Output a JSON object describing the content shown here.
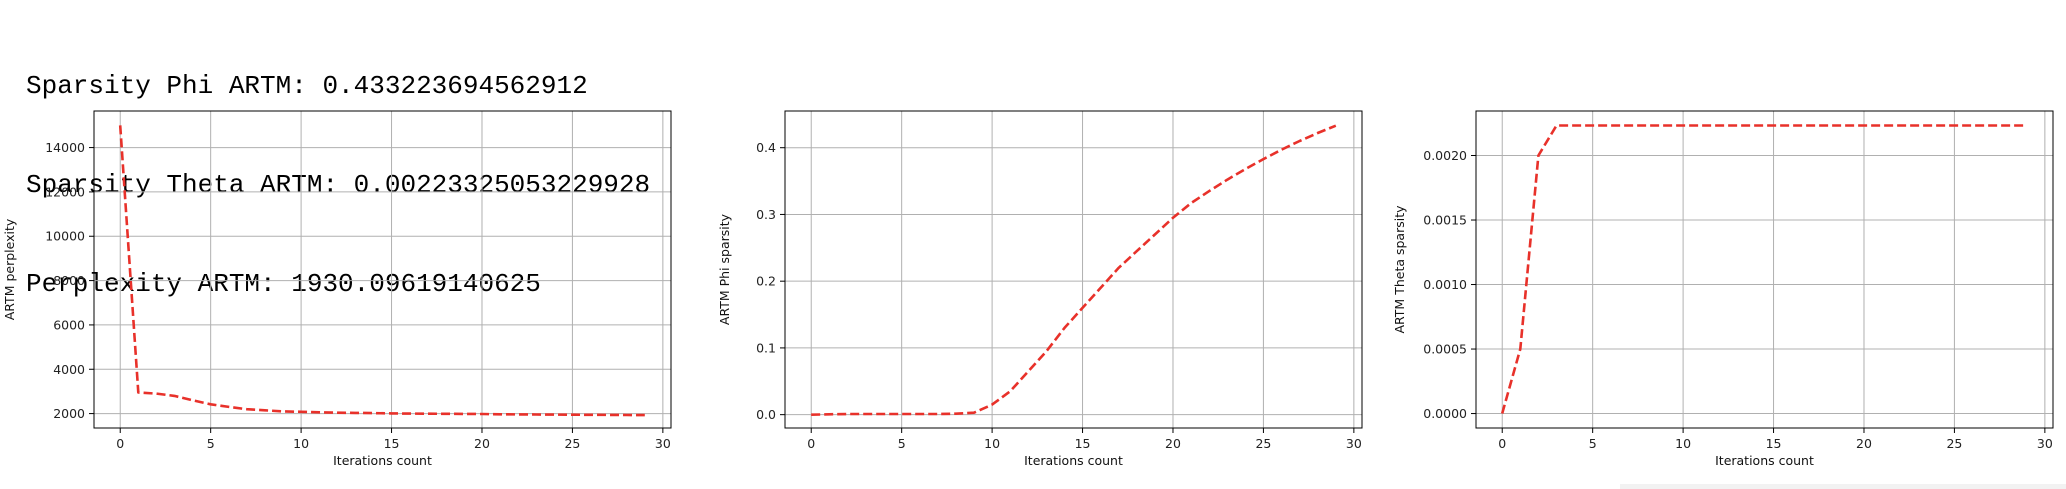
{
  "stats": {
    "line1": "Sparsity Phi ARTM: 0.433223694562912",
    "line2": "Sparsity Theta ARTM: 0.00223325053229928",
    "line3": "Perplexity ARTM: 1930.09619140625"
  },
  "chart_data": [
    {
      "type": "line",
      "xlabel": "Iterations count",
      "ylabel": "ARTM perplexity",
      "xlim": [
        -1.45,
        30.45
      ],
      "ylim": [
        1350,
        15650
      ],
      "xticks": [
        0,
        5,
        10,
        15,
        20,
        25,
        30
      ],
      "yticks": [
        2000,
        4000,
        6000,
        8000,
        10000,
        12000,
        14000
      ],
      "ytick_labels": [
        "2000",
        "4000",
        "6000",
        "8000",
        "10000",
        "12000",
        "14000"
      ],
      "grid": true,
      "line_color": "#e8312a",
      "line_style": "dashed",
      "x": [
        0,
        1,
        2,
        3,
        4,
        5,
        6,
        7,
        8,
        9,
        10,
        11,
        12,
        13,
        14,
        15,
        16,
        17,
        18,
        19,
        20,
        21,
        22,
        23,
        24,
        25,
        26,
        27,
        28,
        29
      ],
      "y": [
        15000,
        2950,
        2900,
        2800,
        2600,
        2420,
        2300,
        2200,
        2150,
        2100,
        2080,
        2060,
        2040,
        2030,
        2020,
        2010,
        2000,
        1995,
        1990,
        1985,
        1980,
        1970,
        1965,
        1960,
        1955,
        1950,
        1945,
        1940,
        1935,
        1930
      ]
    },
    {
      "type": "line",
      "xlabel": "Iterations count",
      "ylabel": "ARTM Phi sparsity",
      "xlim": [
        -1.45,
        30.45
      ],
      "ylim": [
        -0.02,
        0.455
      ],
      "xticks": [
        0,
        5,
        10,
        15,
        20,
        25,
        30
      ],
      "yticks": [
        0.0,
        0.1,
        0.2,
        0.3,
        0.4
      ],
      "ytick_labels": [
        "0.0",
        "0.1",
        "0.2",
        "0.3",
        "0.4"
      ],
      "grid": true,
      "line_color": "#e8312a",
      "line_style": "dashed",
      "x": [
        0,
        1,
        2,
        3,
        4,
        5,
        6,
        7,
        8,
        9,
        10,
        11,
        12,
        13,
        14,
        15,
        16,
        17,
        18,
        19,
        20,
        21,
        22,
        23,
        24,
        25,
        26,
        27,
        28,
        29
      ],
      "y": [
        0.0,
        0.0005,
        0.001,
        0.001,
        0.001,
        0.001,
        0.001,
        0.001,
        0.0015,
        0.003,
        0.015,
        0.035,
        0.065,
        0.095,
        0.13,
        0.16,
        0.19,
        0.22,
        0.245,
        0.27,
        0.295,
        0.317,
        0.335,
        0.352,
        0.368,
        0.383,
        0.397,
        0.41,
        0.422,
        0.433
      ]
    },
    {
      "type": "line",
      "xlabel": "Iterations count",
      "ylabel": "ARTM Theta sparsity",
      "xlim": [
        -1.45,
        30.45
      ],
      "ylim": [
        -0.000112,
        0.002345
      ],
      "xticks": [
        0,
        5,
        10,
        15,
        20,
        25,
        30
      ],
      "yticks": [
        0.0,
        0.0005,
        0.001,
        0.0015,
        0.002
      ],
      "ytick_labels": [
        "0.0000",
        "0.0005",
        "0.0010",
        "0.0015",
        "0.0020"
      ],
      "grid": true,
      "line_color": "#e8312a",
      "line_style": "dashed",
      "x": [
        0,
        1,
        2,
        3,
        4,
        5,
        6,
        7,
        8,
        9,
        10,
        11,
        12,
        13,
        14,
        15,
        16,
        17,
        18,
        19,
        20,
        21,
        22,
        23,
        24,
        25,
        26,
        27,
        28,
        29
      ],
      "y": [
        0.0,
        0.0005,
        0.002,
        0.002233,
        0.002233,
        0.002233,
        0.002233,
        0.002233,
        0.002233,
        0.002233,
        0.002233,
        0.002233,
        0.002233,
        0.002233,
        0.002233,
        0.002233,
        0.002233,
        0.002233,
        0.002233,
        0.002233,
        0.002233,
        0.002233,
        0.002233,
        0.002233,
        0.002233,
        0.002233,
        0.002233,
        0.002233,
        0.002233,
        0.002233
      ]
    }
  ]
}
